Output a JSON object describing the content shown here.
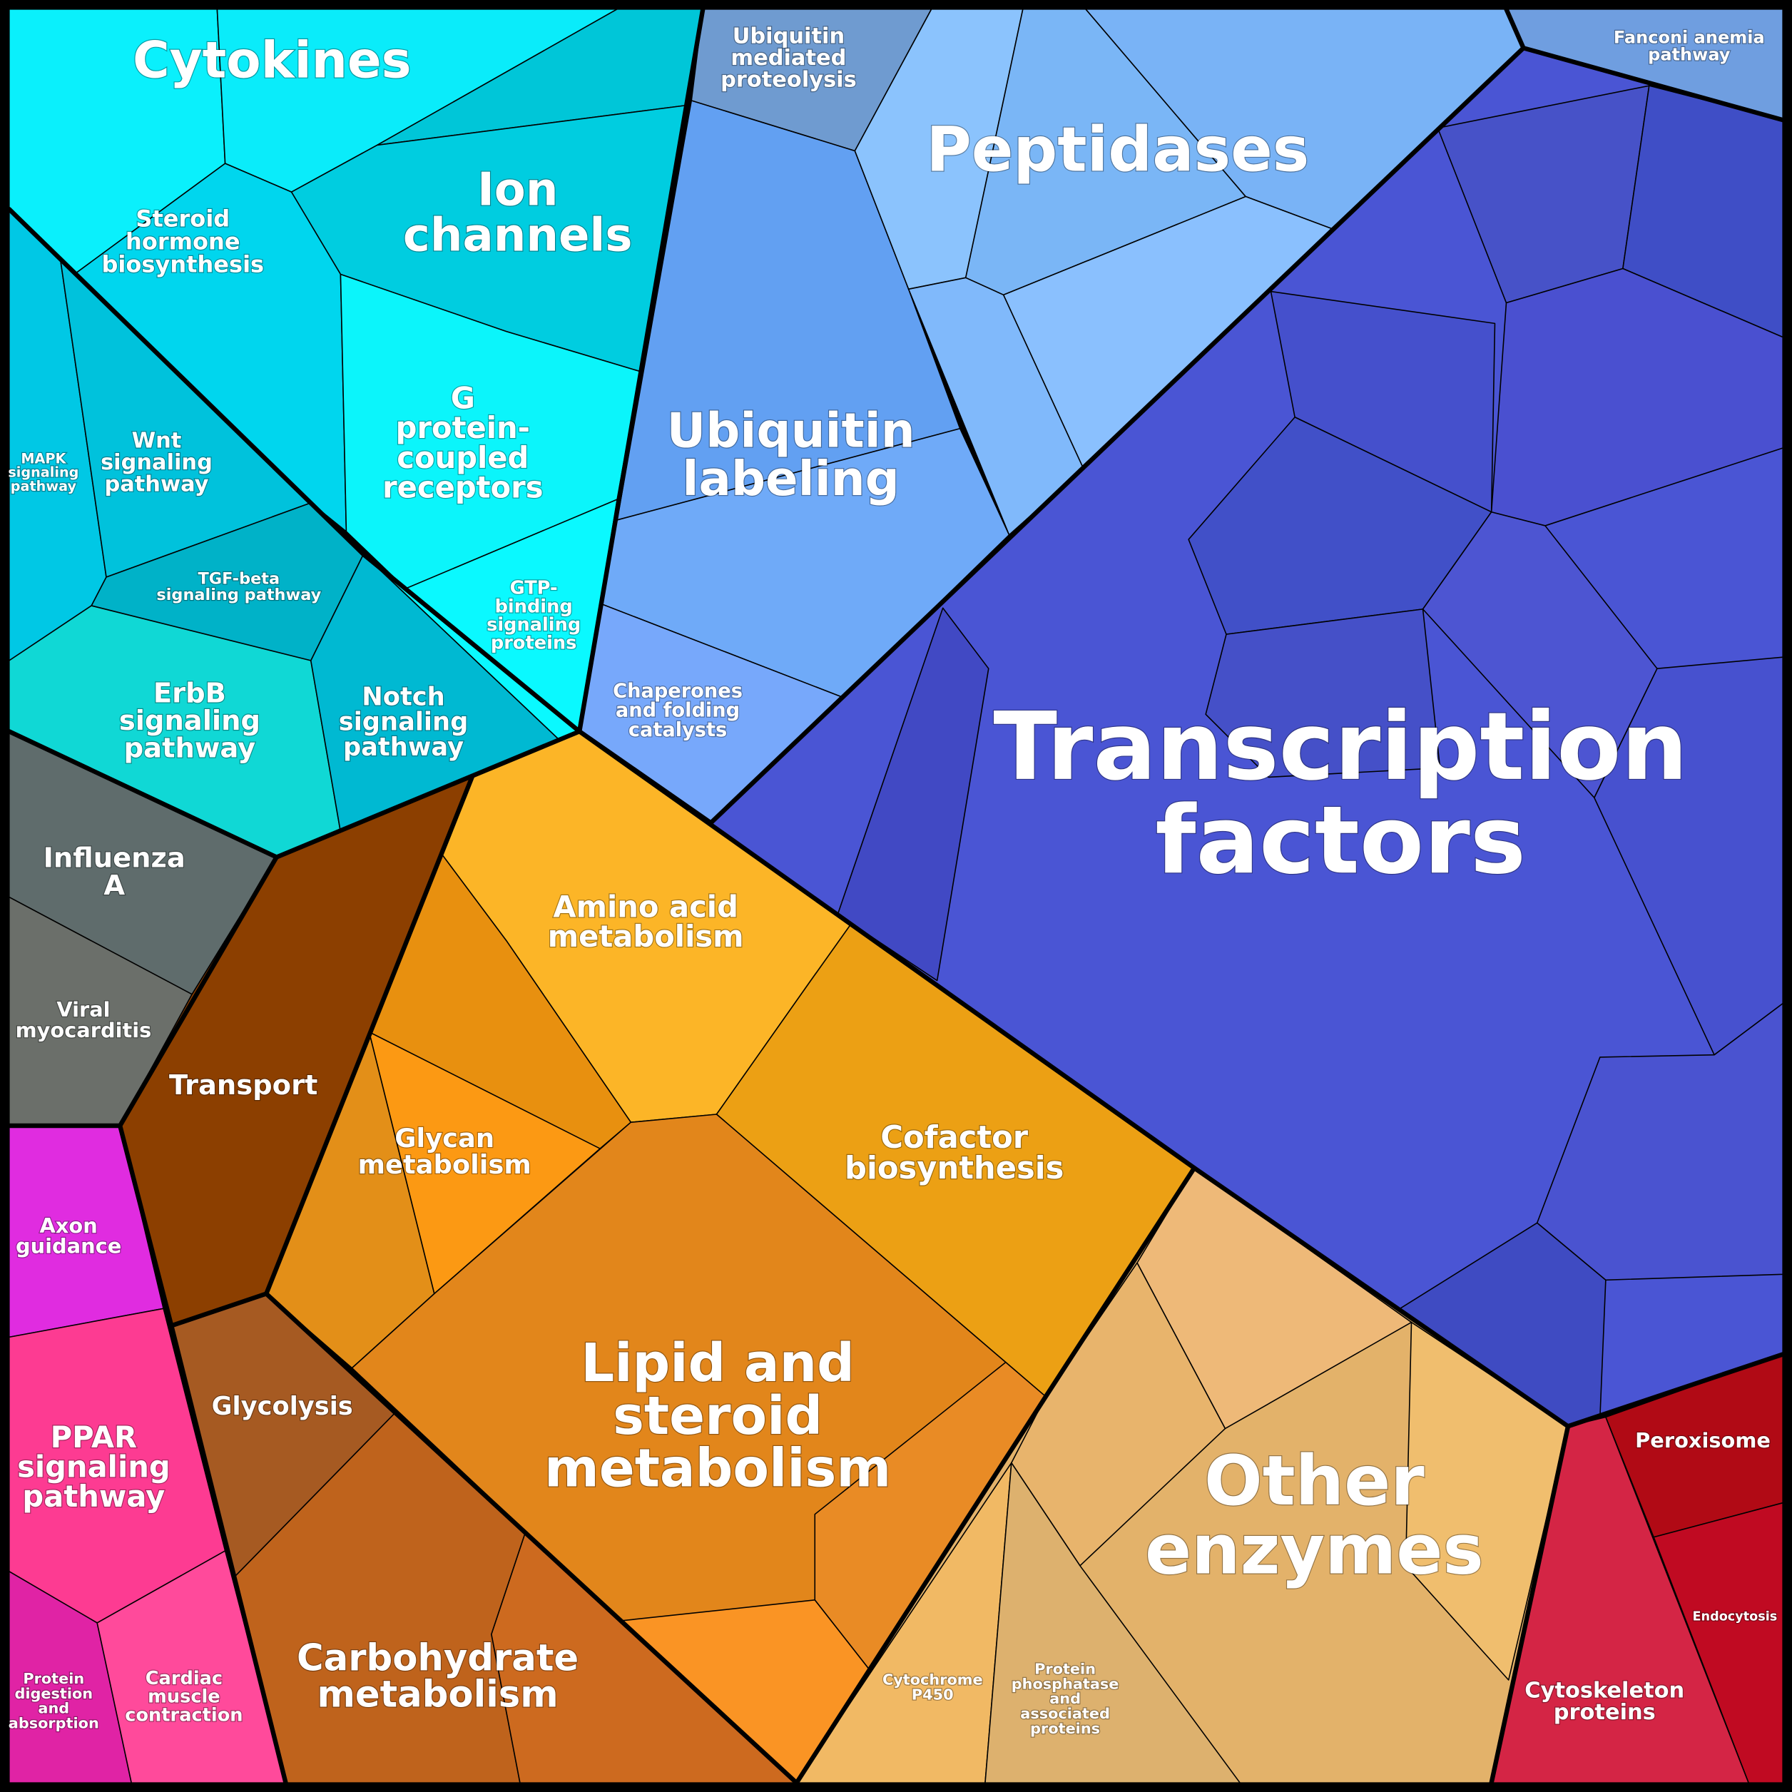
{
  "cells": [
    {
      "label": "Cytokines"
    },
    {
      "label": "Ion\nchannels"
    },
    {
      "label": "Steroid\nhormone\nbiosynthesis"
    },
    {
      "label": "G\nprotein-\ncoupled\nreceptors"
    },
    {
      "label": "MAPK\nsignaling\npathway"
    },
    {
      "label": "Wnt\nsignaling\npathway"
    },
    {
      "label": "TGF-beta\nsignaling pathway"
    },
    {
      "label": "GTP-\nbinding\nsignaling\nproteins"
    },
    {
      "label": "ErbB\nsignaling\npathway"
    },
    {
      "label": "Notch\nsignaling\npathway"
    },
    {
      "label": "Ubiquitin\nmediated\nproteolysis"
    },
    {
      "label": "Peptidases"
    },
    {
      "label": "Fanconi anemia\npathway"
    },
    {
      "label": "Ubiquitin\nlabeling"
    },
    {
      "label": "Chaperones\nand folding\ncatalysts"
    },
    {
      "label": "Transcription\nfactors"
    },
    {
      "label": "Influenza\nA"
    },
    {
      "label": "Viral\nmyocarditis"
    },
    {
      "label": "Transport"
    },
    {
      "label": "Amino acid\nmetabolism"
    },
    {
      "label": "Glycan\nmetabolism"
    },
    {
      "label": "Cofactor\nbiosynthesis"
    },
    {
      "label": "Axon\nguidance"
    },
    {
      "label": "Glycolysis"
    },
    {
      "label": "PPAR\nsignaling\npathway"
    },
    {
      "label": "Lipid and\nsteroid\nmetabolism"
    },
    {
      "label": "Other\nenzymes"
    },
    {
      "label": "Peroxisome"
    },
    {
      "label": "Cytochrome\nP450"
    },
    {
      "label": "Protein\nphosphatase\nand\nassociated\nproteins"
    },
    {
      "label": "Carbohydrate\nmetabolism"
    },
    {
      "label": "Cardiac\nmuscle\ncontraction"
    },
    {
      "label": "Protein\ndigestion\nand\nabsorption"
    },
    {
      "label": "Endocytosis"
    },
    {
      "label": "Cytoskeleton\nproteins"
    }
  ]
}
